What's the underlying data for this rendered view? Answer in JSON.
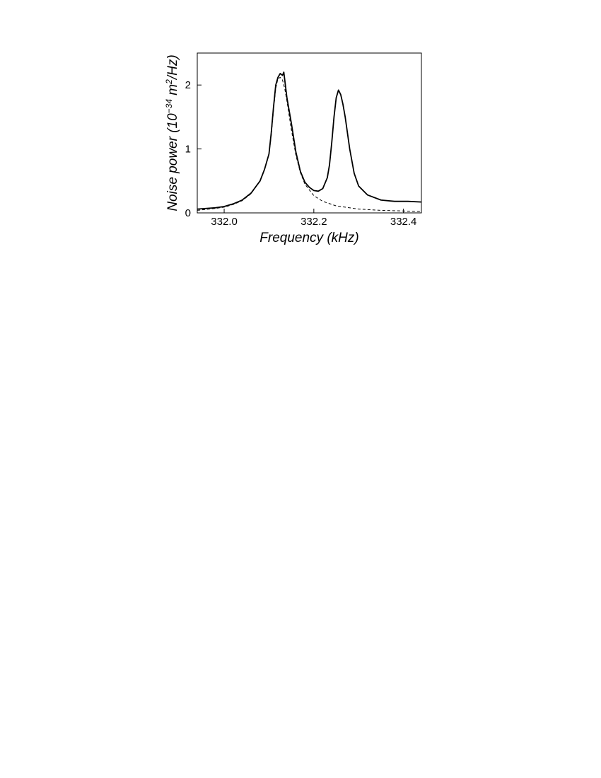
{
  "chart_data": {
    "type": "line",
    "xlabel": "Frequency (kHz)",
    "ylabel": {
      "prefix": "Noise power (10",
      "exp1": "−34",
      "mid": " m",
      "exp2": "2",
      "suffix": "/Hz)"
    },
    "xlim": [
      331.94,
      332.44
    ],
    "ylim": [
      0,
      2.5
    ],
    "xticks": [
      332.0,
      332.2,
      332.4
    ],
    "xtick_labels": [
      "332.0",
      "332.2",
      "332.4"
    ],
    "yticks": [
      0,
      1,
      2
    ],
    "ytick_labels": [
      "0",
      "1",
      "2"
    ],
    "grid": false,
    "series": [
      {
        "style": "solid",
        "x": [
          331.94,
          331.98,
          332.0,
          332.02,
          332.04,
          332.06,
          332.08,
          332.09,
          332.1,
          332.105,
          332.11,
          332.115,
          332.12,
          332.125,
          332.13,
          332.133,
          332.14,
          332.15,
          332.16,
          332.17,
          332.18,
          332.19,
          332.2,
          332.21,
          332.22,
          332.23,
          332.235,
          332.24,
          332.245,
          332.25,
          332.255,
          332.26,
          332.265,
          332.27,
          332.28,
          332.29,
          332.3,
          332.32,
          332.35,
          332.38,
          332.41,
          332.44
        ],
        "y": [
          0.06,
          0.08,
          0.1,
          0.14,
          0.2,
          0.31,
          0.5,
          0.68,
          0.92,
          1.25,
          1.65,
          2.0,
          2.12,
          2.18,
          2.15,
          2.2,
          1.8,
          1.4,
          0.95,
          0.65,
          0.48,
          0.4,
          0.35,
          0.34,
          0.38,
          0.55,
          0.75,
          1.1,
          1.5,
          1.8,
          1.92,
          1.85,
          1.7,
          1.5,
          1.0,
          0.62,
          0.42,
          0.28,
          0.2,
          0.18,
          0.18,
          0.17
        ]
      },
      {
        "style": "dashed",
        "x": [
          331.94,
          331.98,
          332.0,
          332.02,
          332.04,
          332.06,
          332.08,
          332.09,
          332.1,
          332.105,
          332.11,
          332.115,
          332.12,
          332.125,
          332.13,
          332.135,
          332.14,
          332.15,
          332.16,
          332.17,
          332.18,
          332.2,
          332.22,
          332.25,
          332.3,
          332.35,
          332.4,
          332.44
        ],
        "y": [
          0.04,
          0.07,
          0.09,
          0.13,
          0.19,
          0.3,
          0.5,
          0.68,
          0.92,
          1.2,
          1.6,
          1.95,
          2.1,
          2.12,
          2.08,
          1.95,
          1.75,
          1.3,
          0.9,
          0.63,
          0.45,
          0.27,
          0.18,
          0.11,
          0.06,
          0.04,
          0.03,
          0.02
        ]
      }
    ]
  }
}
